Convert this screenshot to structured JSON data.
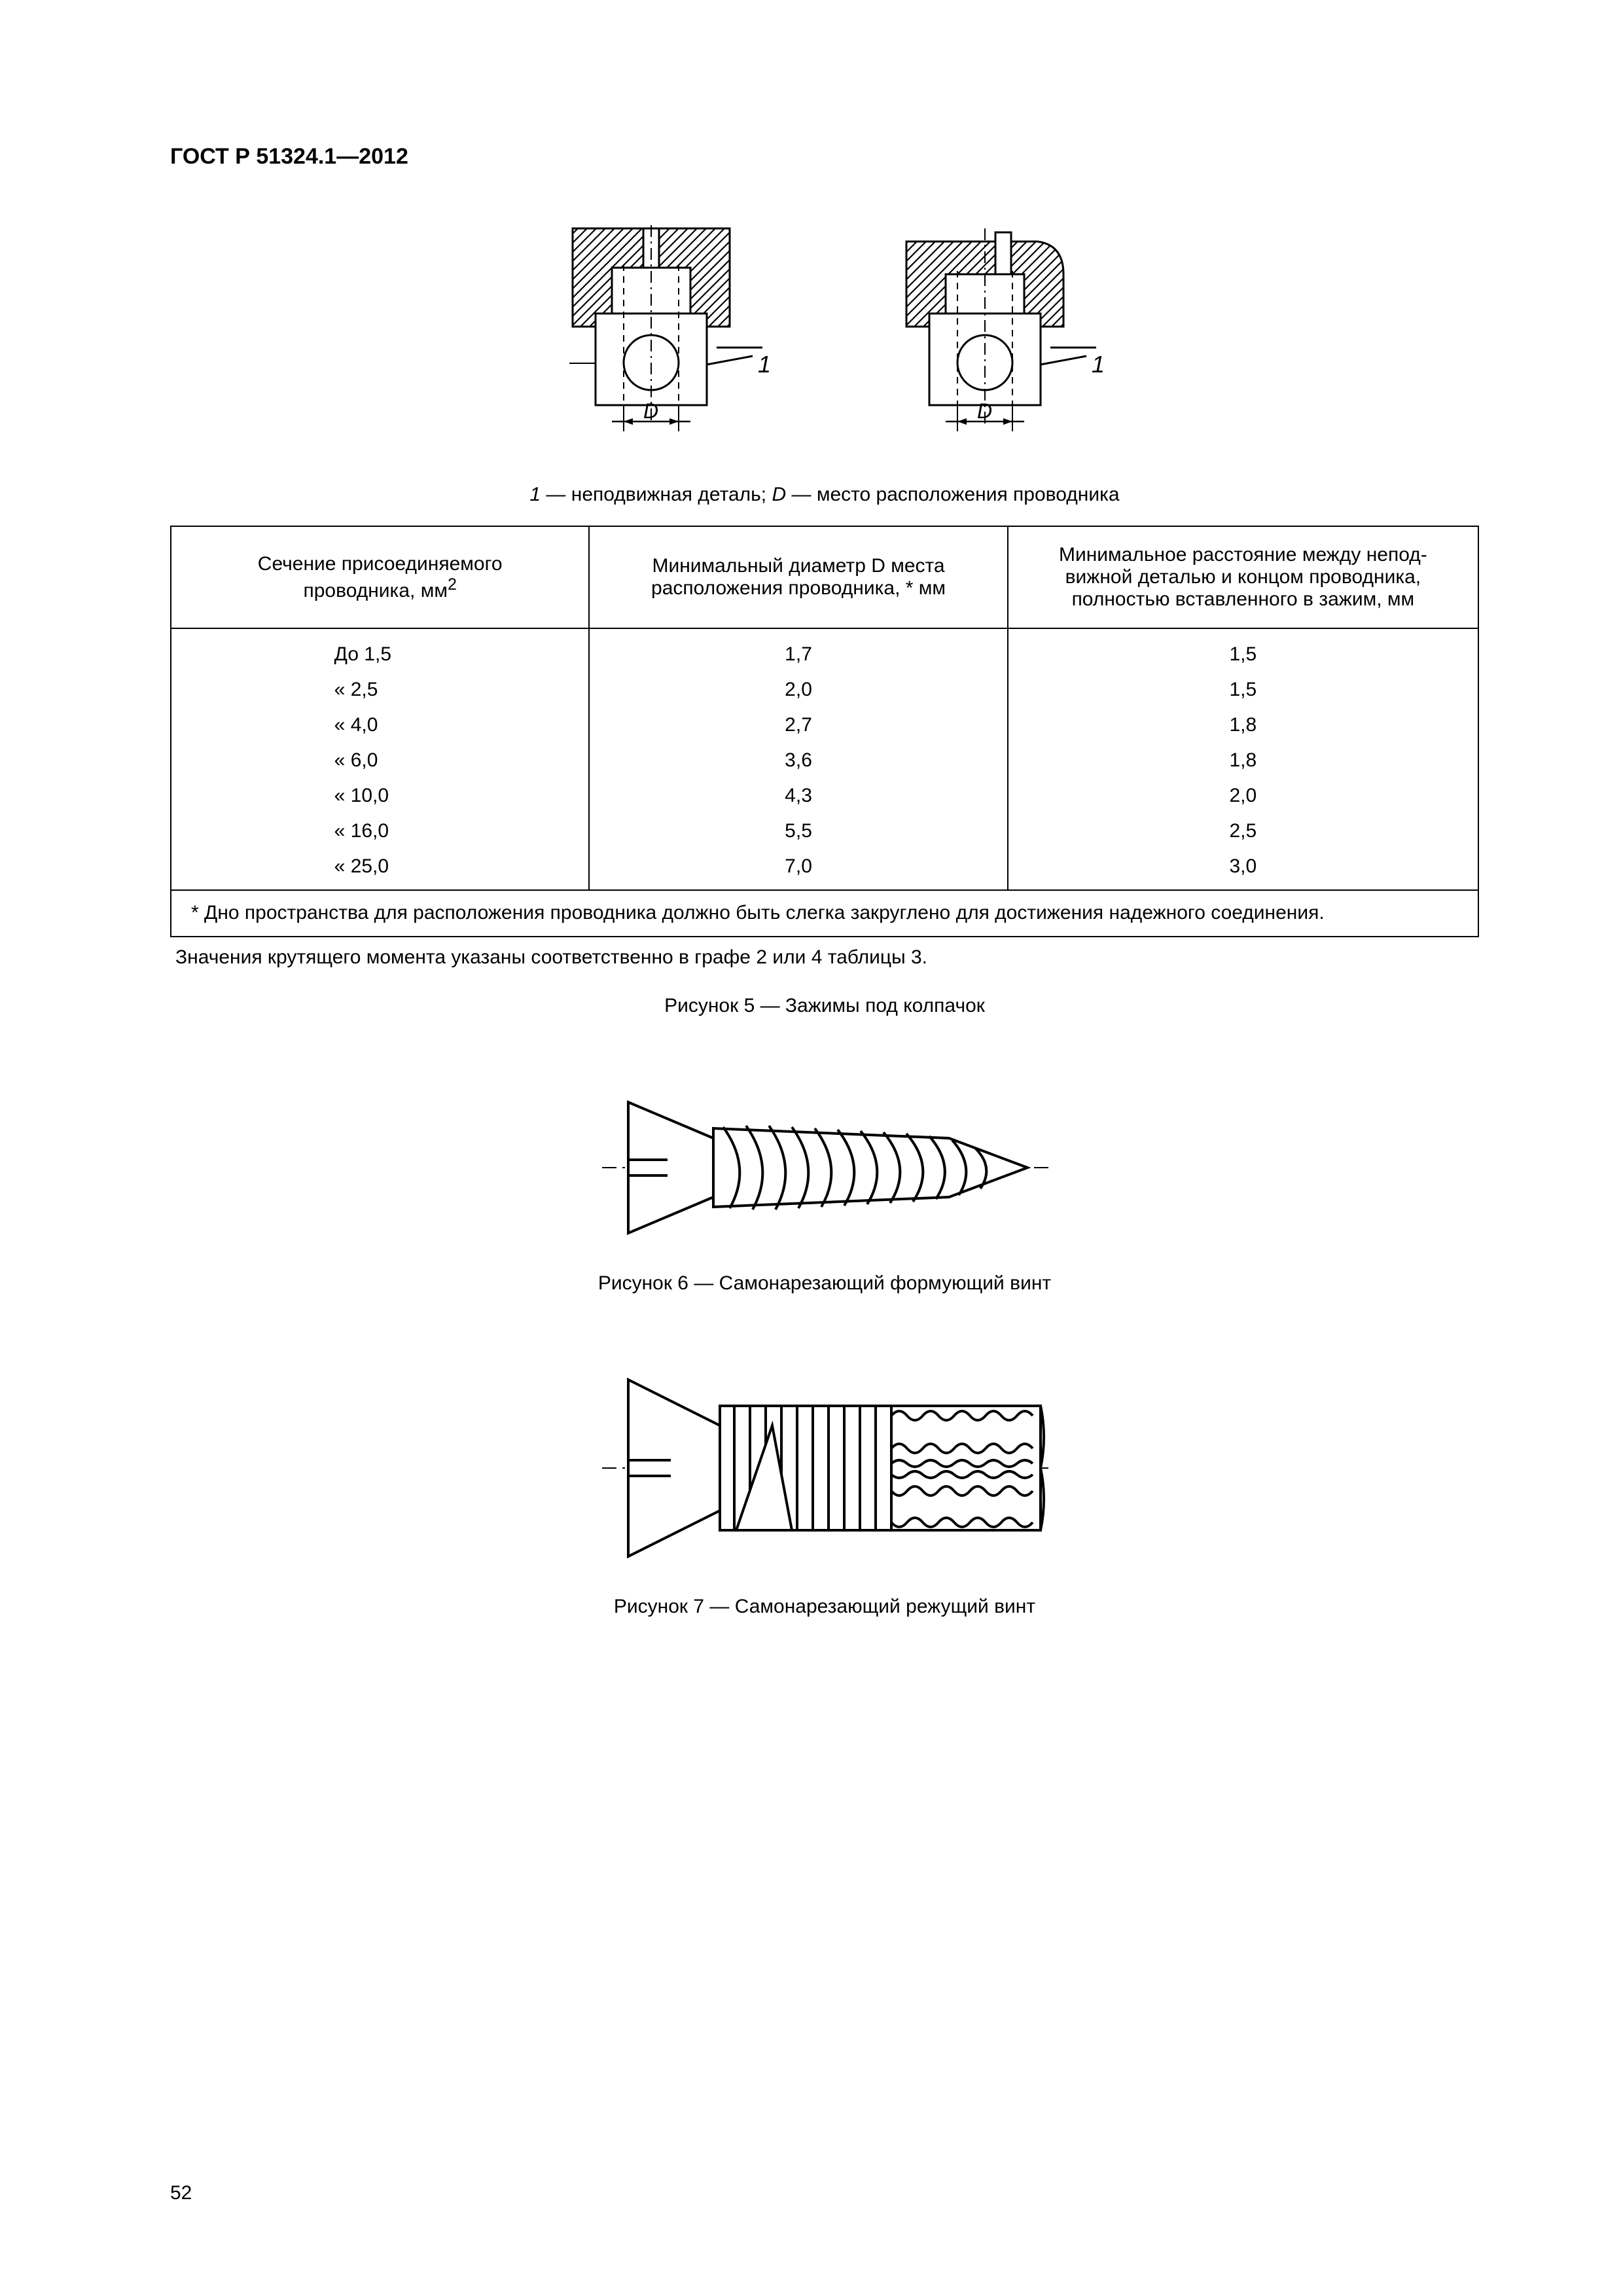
{
  "header": "ГОСТ Р 51324.1—2012",
  "figure5": {
    "legend_prefix": "1 — ",
    "legend_part1": "неподвижная деталь; ",
    "legend_d": "D — ",
    "legend_part2": "место расположения проводника",
    "label_one": "1",
    "label_D": "D"
  },
  "table": {
    "headers": {
      "c1_line1": "Сечение присоединяемого",
      "c1_line2": "проводника, мм",
      "c1_sup": "2",
      "c2_line1": "Минимальный диаметр D места",
      "c2_line2": "расположения проводника, *  мм",
      "c3_line1": "Минимальное расстояние между непод-",
      "c3_line2": "вижной деталью и концом проводника,",
      "c3_line3": "полностью вставленного в зажим, мм"
    },
    "rows": [
      {
        "c1": "До 1,5",
        "c2": "1,7",
        "c3": "1,5"
      },
      {
        "c1": "«   2,5",
        "c2": "2,0",
        "c3": "1,5"
      },
      {
        "c1": "«   4,0",
        "c2": "2,7",
        "c3": "1,8"
      },
      {
        "c1": "«   6,0",
        "c2": "3,6",
        "c3": "1,8"
      },
      {
        "c1": "«  10,0",
        "c2": "4,3",
        "c3": "2,0"
      },
      {
        "c1": "«  16,0",
        "c2": "5,5",
        "c3": "2,5"
      },
      {
        "c1": "«  25,0",
        "c2": "7,0",
        "c3": "3,0"
      }
    ],
    "footnote": "* Дно пространства для расположения проводника должно быть слегка закруглено для достижения надежного соединения."
  },
  "after_table_note": "Значения крутящего момента указаны соответственно в графе 2 или 4  таблицы 3.",
  "captions": {
    "fig5": "Рисунок 5 — Зажимы под колпачок",
    "fig6": "Рисунок 6 — Самонарезающий формующий винт",
    "fig7": "Рисунок 7 — Самонарезающий режущий винт"
  },
  "page_number": "52",
  "colors": {
    "stroke": "#000000",
    "hatch": "#000000",
    "bg": "#ffffff"
  }
}
